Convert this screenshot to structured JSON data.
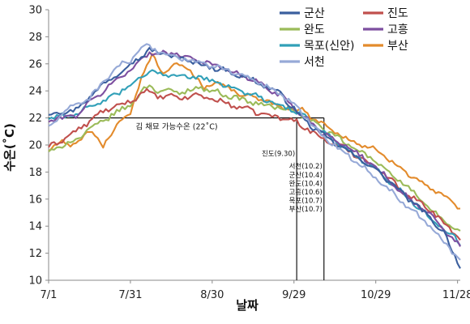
{
  "chart_data": {
    "type": "line",
    "xlabel": "날짜",
    "ylabel": "수온(˚C)",
    "ylim": [
      10,
      30
    ],
    "yticks": [
      10,
      12,
      14,
      16,
      18,
      20,
      22,
      24,
      26,
      28,
      30
    ],
    "xlim": [
      0,
      151
    ],
    "xticks": [
      {
        "day": 0,
        "label": "7/1"
      },
      {
        "day": 30,
        "label": "7/31"
      },
      {
        "day": 60,
        "label": "8/30"
      },
      {
        "day": 90,
        "label": "9/29"
      },
      {
        "day": 120,
        "label": "10/29"
      },
      {
        "day": 150,
        "label": "11/28"
      }
    ],
    "grid": false,
    "legend_position": "top-right",
    "series": [
      {
        "name": "군산",
        "color": "#3b5f9e",
        "x": [
          0,
          10,
          20,
          30,
          37,
          45,
          55,
          65,
          75,
          85,
          93,
          100,
          110,
          120,
          130,
          140,
          145,
          151
        ],
        "y": [
          22.3,
          22.6,
          24.5,
          26.0,
          27.0,
          26.6,
          26.0,
          25.5,
          24.8,
          23.8,
          22.0,
          20.8,
          19.5,
          18.2,
          16.4,
          14.6,
          13.5,
          11.0
        ]
      },
      {
        "name": "진도",
        "color": "#c0504d",
        "x": [
          0,
          5,
          10,
          20,
          30,
          35,
          40,
          50,
          55,
          60,
          70,
          80,
          90,
          95,
          100,
          110,
          120,
          130,
          140,
          151
        ],
        "y": [
          19.8,
          20.4,
          21.0,
          22.5,
          23.2,
          24.0,
          23.6,
          23.5,
          23.7,
          23.4,
          22.8,
          22.2,
          21.8,
          21.2,
          20.5,
          19.6,
          18.4,
          16.6,
          15.2,
          13.1
        ]
      },
      {
        "name": "완도",
        "color": "#9bbb59",
        "x": [
          0,
          10,
          20,
          30,
          37,
          40,
          50,
          55,
          60,
          70,
          80,
          90,
          93,
          100,
          110,
          120,
          130,
          140,
          151
        ],
        "y": [
          19.5,
          20.4,
          21.8,
          23.0,
          24.5,
          24.0,
          23.9,
          24.3,
          24.0,
          23.4,
          22.9,
          22.6,
          22.2,
          21.3,
          20.0,
          18.8,
          17.2,
          15.2,
          13.5
        ]
      },
      {
        "name": "고흥",
        "color": "#7d4fa0",
        "x": [
          0,
          10,
          20,
          30,
          37,
          45,
          55,
          65,
          75,
          85,
          93,
          100,
          110,
          120,
          130,
          140,
          145,
          151
        ],
        "y": [
          21.8,
          22.2,
          24.0,
          25.6,
          26.8,
          26.8,
          26.3,
          25.6,
          24.8,
          23.7,
          22.2,
          21.0,
          19.8,
          18.4,
          16.4,
          14.8,
          13.7,
          12.5
        ]
      },
      {
        "name": "목포(신안)",
        "color": "#31a0b8",
        "x": [
          0,
          10,
          20,
          30,
          37,
          45,
          55,
          65,
          75,
          85,
          93,
          100,
          110,
          120,
          130,
          140,
          151
        ],
        "y": [
          22.0,
          22.3,
          23.2,
          24.4,
          25.4,
          25.2,
          25.0,
          24.4,
          23.7,
          23.0,
          22.2,
          21.0,
          19.6,
          18.2,
          16.4,
          14.6,
          12.8
        ]
      },
      {
        "name": "부산",
        "color": "#e38b2c",
        "x": [
          0,
          5,
          10,
          15,
          20,
          25,
          30,
          34,
          38,
          42,
          47,
          52,
          57,
          62,
          70,
          80,
          90,
          93,
          100,
          110,
          120,
          130,
          140,
          151
        ],
        "y": [
          19.5,
          20.3,
          19.9,
          21.2,
          19.8,
          21.6,
          22.3,
          25.0,
          26.6,
          25.4,
          26.0,
          25.5,
          24.2,
          24.6,
          23.8,
          23.2,
          22.6,
          22.6,
          21.6,
          20.4,
          19.6,
          18.2,
          16.8,
          15.3
        ]
      },
      {
        "name": "서천",
        "color": "#96a9d7",
        "x": [
          0,
          8,
          15,
          20,
          25,
          30,
          35,
          45,
          55,
          65,
          75,
          85,
          93,
          100,
          110,
          120,
          130,
          140,
          151
        ],
        "y": [
          21.3,
          22.8,
          23.5,
          24.6,
          25.8,
          26.2,
          27.3,
          26.6,
          26.1,
          25.6,
          24.8,
          23.8,
          22.4,
          20.8,
          19.2,
          17.6,
          15.8,
          14.0,
          11.5
        ]
      }
    ],
    "annotations": {
      "threshold_value": 22,
      "threshold_label": "김 채묘 가능수온 (22˚C)",
      "jindo_day": 91,
      "jindo_label": "진도(9.30)",
      "others_day": 101,
      "others_labels": [
        "서천(10.2)",
        "군산(10.4)",
        "완도(10.4)",
        "고흥(10.6)",
        "목포(10.7)",
        "부산(10.7)"
      ]
    }
  }
}
